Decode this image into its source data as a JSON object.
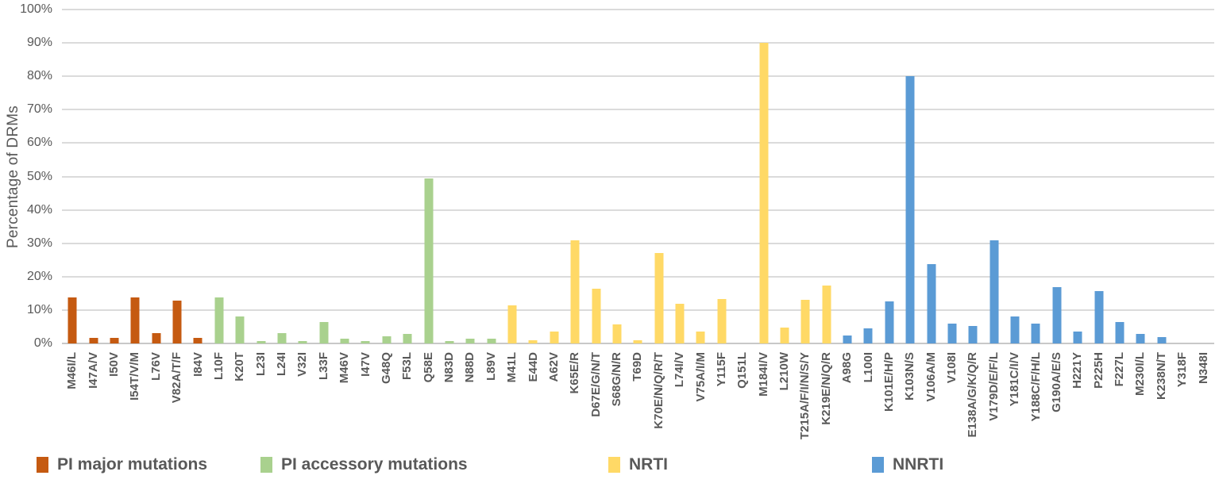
{
  "chart_data": {
    "type": "bar",
    "title": "",
    "xlabel": "",
    "ylabel": "Percentage of DRMs",
    "ylim": [
      0,
      100
    ],
    "ytick_step": 10,
    "ytick_format": "percent",
    "grid": true,
    "legend_position": "bottom",
    "groups": [
      {
        "name": "PI major mutations",
        "color": "#C55A11",
        "bars": [
          {
            "label": "M46I/L",
            "value": 13.7
          },
          {
            "label": "I47A/V",
            "value": 1.6
          },
          {
            "label": "I50V",
            "value": 1.6
          },
          {
            "label": "I54T/V/M",
            "value": 13.7
          },
          {
            "label": "L76V",
            "value": 3.2
          },
          {
            "label": "V82A/T/F",
            "value": 12.9
          },
          {
            "label": "I84V",
            "value": 1.6
          }
        ]
      },
      {
        "name": "PI accessory mutations",
        "color": "#A9D18E",
        "bars": [
          {
            "label": "L10F",
            "value": 13.7
          },
          {
            "label": "K20T",
            "value": 8.0
          },
          {
            "label": "L23I",
            "value": 0.8
          },
          {
            "label": "L24I",
            "value": 3.2
          },
          {
            "label": "V32I",
            "value": 0.8
          },
          {
            "label": "L33F",
            "value": 6.5
          },
          {
            "label": "M46V",
            "value": 1.4
          },
          {
            "label": "I47V",
            "value": 0.8
          },
          {
            "label": "G48Q",
            "value": 2.1
          },
          {
            "label": "F53L",
            "value": 2.9
          },
          {
            "label": "Q58E",
            "value": 49.5
          },
          {
            "label": "N83D",
            "value": 0.8
          },
          {
            "label": "N88D",
            "value": 1.4
          },
          {
            "label": "L89V",
            "value": 1.4
          }
        ]
      },
      {
        "name": "NRTI",
        "color": "#FFD966",
        "bars": [
          {
            "label": "M41L",
            "value": 11.5
          },
          {
            "label": "E44D",
            "value": 1.0
          },
          {
            "label": "A62V",
            "value": 3.6
          },
          {
            "label": "K65E/R",
            "value": 31.0
          },
          {
            "label": "D67E/G/N/T",
            "value": 16.3
          },
          {
            "label": "S68G/N/R",
            "value": 5.6
          },
          {
            "label": "T69D",
            "value": 1.0
          },
          {
            "label": "K70E/N/Q/R/T",
            "value": 27.0
          },
          {
            "label": "L74I/V",
            "value": 11.8
          },
          {
            "label": "V75A/I/M",
            "value": 3.6
          },
          {
            "label": "Y115F",
            "value": 13.4
          },
          {
            "label": "Q151L",
            "value": 0.0
          },
          {
            "label": "M184I/V",
            "value": 90.0
          },
          {
            "label": "L210W",
            "value": 4.8
          },
          {
            "label": "T215A/F/I/N/S/Y",
            "value": 13.0
          },
          {
            "label": "K219E/N/Q/R",
            "value": 17.4
          }
        ]
      },
      {
        "name": "NNRTI",
        "color": "#5B9BD5",
        "bars": [
          {
            "label": "A98G",
            "value": 2.4
          },
          {
            "label": "L100I",
            "value": 4.6
          },
          {
            "label": "K101E/H/P",
            "value": 12.5
          },
          {
            "label": "K103N/S",
            "value": 80.0
          },
          {
            "label": "V106A/M",
            "value": 23.7
          },
          {
            "label": "V108I",
            "value": 5.9
          },
          {
            "label": "E138A/G/K/Q/R",
            "value": 5.2
          },
          {
            "label": "V179D/E/F/L",
            "value": 30.8
          },
          {
            "label": "Y181C/I/V",
            "value": 8.0
          },
          {
            "label": "Y188C/F/H/L",
            "value": 5.9
          },
          {
            "label": "G190A/E/S",
            "value": 16.9
          },
          {
            "label": "H221Y",
            "value": 3.6
          },
          {
            "label": "P225H",
            "value": 15.6
          },
          {
            "label": "F227L",
            "value": 6.5
          },
          {
            "label": "M230I/L",
            "value": 2.9
          },
          {
            "label": "K238N/T",
            "value": 1.8
          },
          {
            "label": "Y318F",
            "value": 0.0
          },
          {
            "label": "N348I",
            "value": 0.0
          }
        ]
      }
    ],
    "colors": {
      "grid": "#DBDBDB",
      "axis_line": "#C8C8C8",
      "tick_text": "#595959",
      "label_text": "#595959",
      "legend_text": "#595959"
    }
  }
}
